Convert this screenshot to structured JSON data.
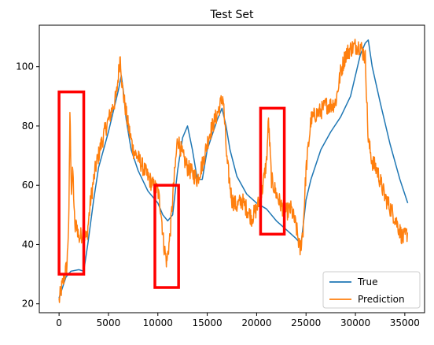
{
  "chart_data": {
    "type": "line",
    "title": "Test Set",
    "xlabel": "",
    "ylabel": "",
    "xlim": [
      -2000,
      37000
    ],
    "ylim": [
      17,
      114
    ],
    "xticks": [
      0,
      5000,
      10000,
      15000,
      20000,
      25000,
      30000,
      35000
    ],
    "yticks": [
      20,
      40,
      60,
      80,
      100
    ],
    "legend": {
      "position": "lower-right"
    },
    "series": [
      {
        "name": "True",
        "color": "#1f77b4",
        "noise": 0,
        "points": [
          [
            0,
            22
          ],
          [
            300,
            25
          ],
          [
            700,
            29
          ],
          [
            1200,
            31
          ],
          [
            2000,
            31.5
          ],
          [
            2500,
            31
          ],
          [
            2900,
            40
          ],
          [
            3500,
            55
          ],
          [
            4000,
            66
          ],
          [
            4500,
            72
          ],
          [
            5000,
            78
          ],
          [
            5500,
            85
          ],
          [
            6000,
            92
          ],
          [
            6300,
            97
          ],
          [
            6500,
            92
          ],
          [
            6800,
            82
          ],
          [
            7300,
            72
          ],
          [
            8000,
            65
          ],
          [
            9000,
            58
          ],
          [
            10000,
            54
          ],
          [
            10500,
            50
          ],
          [
            11000,
            48
          ],
          [
            11500,
            50
          ],
          [
            12000,
            65
          ],
          [
            12500,
            76
          ],
          [
            13000,
            80
          ],
          [
            13500,
            72
          ],
          [
            14000,
            62
          ],
          [
            14500,
            62
          ],
          [
            15000,
            72
          ],
          [
            16000,
            82
          ],
          [
            16500,
            86
          ],
          [
            16900,
            80
          ],
          [
            17300,
            72
          ],
          [
            18000,
            63
          ],
          [
            19000,
            57
          ],
          [
            20000,
            54
          ],
          [
            21000,
            52
          ],
          [
            22000,
            48
          ],
          [
            23000,
            45
          ],
          [
            24000,
            42
          ],
          [
            24500,
            40
          ],
          [
            25000,
            55
          ],
          [
            25500,
            62
          ],
          [
            26500,
            72
          ],
          [
            27500,
            78
          ],
          [
            28500,
            83
          ],
          [
            29500,
            90
          ],
          [
            30500,
            104
          ],
          [
            31000,
            108
          ],
          [
            31300,
            109
          ],
          [
            31700,
            100
          ],
          [
            32500,
            88
          ],
          [
            33500,
            74
          ],
          [
            34500,
            62
          ],
          [
            35300,
            54
          ]
        ]
      },
      {
        "name": "Prediction",
        "color": "#ff7f0e",
        "noise": 3,
        "points": [
          [
            0,
            21
          ],
          [
            300,
            26
          ],
          [
            800,
            33
          ],
          [
            1000,
            50
          ],
          [
            1100,
            85
          ],
          [
            1250,
            58
          ],
          [
            1400,
            65
          ],
          [
            1600,
            45
          ],
          [
            1800,
            47
          ],
          [
            2000,
            42
          ],
          [
            2400,
            44
          ],
          [
            2800,
            42
          ],
          [
            3200,
            55
          ],
          [
            3700,
            66
          ],
          [
            4200,
            73
          ],
          [
            4700,
            79
          ],
          [
            5300,
            85
          ],
          [
            5800,
            90
          ],
          [
            6200,
            104
          ],
          [
            6400,
            93
          ],
          [
            6900,
            82
          ],
          [
            7500,
            72
          ],
          [
            8200,
            68
          ],
          [
            8800,
            64
          ],
          [
            9500,
            60
          ],
          [
            10000,
            58
          ],
          [
            10300,
            52
          ],
          [
            10600,
            40
          ],
          [
            10900,
            34
          ],
          [
            11200,
            42
          ],
          [
            11600,
            60
          ],
          [
            12000,
            76
          ],
          [
            12500,
            70
          ],
          [
            13000,
            66
          ],
          [
            13500,
            64
          ],
          [
            14000,
            62
          ],
          [
            14500,
            67
          ],
          [
            15200,
            77
          ],
          [
            16000,
            84
          ],
          [
            16600,
            90
          ],
          [
            17000,
            68
          ],
          [
            17500,
            55
          ],
          [
            18000,
            53
          ],
          [
            18500,
            55
          ],
          [
            19000,
            52
          ],
          [
            19500,
            49
          ],
          [
            20000,
            52
          ],
          [
            20500,
            57
          ],
          [
            21000,
            68
          ],
          [
            21200,
            82
          ],
          [
            21500,
            62
          ],
          [
            22000,
            57
          ],
          [
            22500,
            53
          ],
          [
            23000,
            51
          ],
          [
            23500,
            52
          ],
          [
            24000,
            46
          ],
          [
            24400,
            38
          ],
          [
            24700,
            45
          ],
          [
            25000,
            65
          ],
          [
            25500,
            82
          ],
          [
            26000,
            84
          ],
          [
            26500,
            85
          ],
          [
            27000,
            87
          ],
          [
            27500,
            87
          ],
          [
            28000,
            88
          ],
          [
            28500,
            98
          ],
          [
            29000,
            104
          ],
          [
            29500,
            106
          ],
          [
            30000,
            107
          ],
          [
            30500,
            107
          ],
          [
            31000,
            103
          ],
          [
            31300,
            75
          ],
          [
            31700,
            68
          ],
          [
            32200,
            65
          ],
          [
            33000,
            56
          ],
          [
            34000,
            49
          ],
          [
            34800,
            42
          ],
          [
            35300,
            44
          ]
        ]
      }
    ],
    "annotations": [
      {
        "type": "rect",
        "color": "#ff0000",
        "x0": 0,
        "x1": 2500,
        "y0": 30,
        "y1": 91.5
      },
      {
        "type": "rect",
        "color": "#ff0000",
        "x0": 9700,
        "x1": 12100,
        "y0": 25.5,
        "y1": 60
      },
      {
        "type": "rect",
        "color": "#ff0000",
        "x0": 20400,
        "x1": 22800,
        "y0": 43.5,
        "y1": 86
      }
    ]
  }
}
